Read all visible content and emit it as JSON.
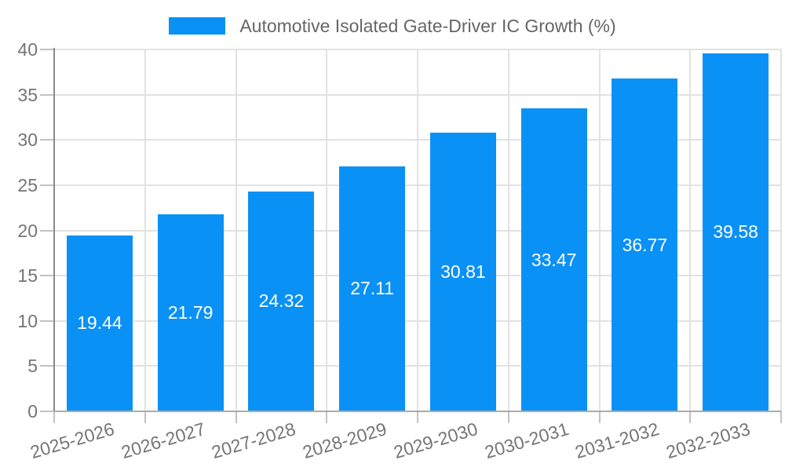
{
  "legend": {
    "label": "Automotive Isolated Gate-Driver IC Growth (%)"
  },
  "chart_data": {
    "type": "bar",
    "title": "Automotive Isolated Gate-Driver IC Growth (%)",
    "categories": [
      "2025-2026",
      "2026-2027",
      "2027-2028",
      "2028-2029",
      "2029-2030",
      "2030-2031",
      "2031-2032",
      "2032-2033"
    ],
    "values": [
      19.44,
      21.79,
      24.32,
      27.11,
      30.81,
      33.47,
      36.77,
      39.58
    ],
    "value_labels": [
      "19.44",
      "21.79",
      "24.32",
      "27.11",
      "30.81",
      "33.47",
      "36.77",
      "39.58"
    ],
    "xlabel": "",
    "ylabel": "",
    "ylim": [
      0,
      40
    ],
    "yticks": [
      0,
      5,
      10,
      15,
      20,
      25,
      30,
      35,
      40
    ],
    "grid": true,
    "legend_position": "top",
    "bar_color": "#0a91f6",
    "value_label_color": "#ffffff",
    "tick_label_color": "#757575",
    "legend_text_color": "#666666",
    "grid_color": "#e2e2e2",
    "x_label_rotation_deg": -16.5
  }
}
